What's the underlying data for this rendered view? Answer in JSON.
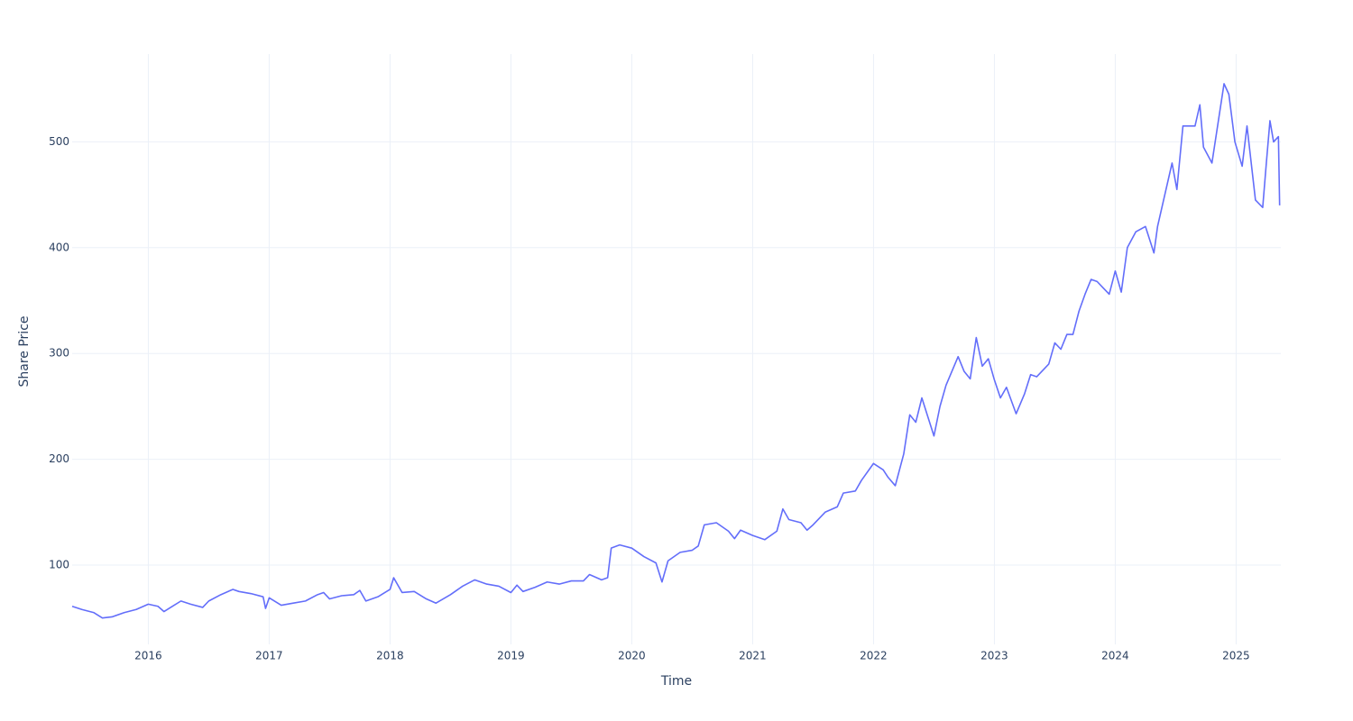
{
  "chart_data": {
    "type": "line",
    "x_label": "Time",
    "y_label": "Share Price",
    "xlim": [
      2015.37,
      2025.37
    ],
    "ylim": [
      25,
      583
    ],
    "xticks": [
      2016,
      2017,
      2018,
      2019,
      2020,
      2021,
      2022,
      2023,
      2024,
      2025
    ],
    "yticks": [
      100,
      200,
      300,
      400,
      500
    ],
    "grid": true,
    "x": [
      2015.37,
      2015.45,
      2015.55,
      2015.62,
      2015.7,
      2015.8,
      2015.9,
      2016.0,
      2016.08,
      2016.13,
      2016.2,
      2016.27,
      2016.35,
      2016.45,
      2016.5,
      2016.6,
      2016.7,
      2016.75,
      2016.85,
      2016.95,
      2016.97,
      2017.0,
      2017.1,
      2017.2,
      2017.3,
      2017.4,
      2017.45,
      2017.5,
      2017.6,
      2017.7,
      2017.75,
      2017.8,
      2017.9,
      2018.0,
      2018.03,
      2018.1,
      2018.2,
      2018.3,
      2018.38,
      2018.5,
      2018.6,
      2018.7,
      2018.8,
      2018.9,
      2019.0,
      2019.05,
      2019.1,
      2019.2,
      2019.3,
      2019.4,
      2019.5,
      2019.6,
      2019.65,
      2019.75,
      2019.8,
      2019.83,
      2019.9,
      2020.0,
      2020.1,
      2020.2,
      2020.25,
      2020.3,
      2020.4,
      2020.5,
      2020.55,
      2020.6,
      2020.7,
      2020.8,
      2020.85,
      2020.9,
      2021.0,
      2021.1,
      2021.2,
      2021.25,
      2021.3,
      2021.4,
      2021.45,
      2021.5,
      2021.6,
      2021.7,
      2021.75,
      2021.85,
      2021.9,
      2022.0,
      2022.08,
      2022.12,
      2022.18,
      2022.25,
      2022.3,
      2022.35,
      2022.4,
      2022.45,
      2022.5,
      2022.55,
      2022.6,
      2022.7,
      2022.75,
      2022.8,
      2022.85,
      2022.9,
      2022.95,
      2023.0,
      2023.05,
      2023.1,
      2023.18,
      2023.25,
      2023.3,
      2023.35,
      2023.45,
      2023.5,
      2023.55,
      2023.6,
      2023.65,
      2023.7,
      2023.75,
      2023.8,
      2023.85,
      2023.9,
      2023.95,
      2024.0,
      2024.05,
      2024.1,
      2024.17,
      2024.25,
      2024.32,
      2024.35,
      2024.4,
      2024.47,
      2024.51,
      2024.56,
      2024.66,
      2024.7,
      2024.73,
      2024.8,
      2024.88,
      2024.9,
      2024.94,
      2024.99,
      2025.05,
      2025.09,
      2025.16,
      2025.22,
      2025.25,
      2025.28,
      2025.31,
      2025.35,
      2025.36
    ],
    "series": [
      {
        "name": "Share Price",
        "color": "#636efa",
        "values": [
          61,
          58,
          55,
          50,
          51,
          55,
          58,
          63,
          61,
          56,
          61,
          66,
          63,
          60,
          66,
          72,
          77,
          75,
          73,
          70,
          59,
          69,
          62,
          64,
          66,
          72,
          74,
          68,
          71,
          72,
          76,
          66,
          70,
          77,
          88,
          74,
          75,
          68,
          64,
          72,
          80,
          86,
          82,
          80,
          74,
          81,
          75,
          79,
          84,
          82,
          85,
          85,
          91,
          86,
          88,
          116,
          119,
          116,
          108,
          102,
          84,
          104,
          112,
          114,
          118,
          138,
          140,
          132,
          125,
          133,
          128,
          124,
          132,
          153,
          143,
          140,
          133,
          138,
          150,
          155,
          168,
          170,
          180,
          196,
          190,
          183,
          175,
          205,
          242,
          235,
          258,
          240,
          222,
          250,
          270,
          297,
          283,
          276,
          315,
          288,
          295,
          275,
          258,
          268,
          243,
          262,
          280,
          278,
          290,
          310,
          304,
          318,
          318,
          340,
          356,
          370,
          368,
          362,
          356,
          378,
          358,
          400,
          415,
          420,
          395,
          420,
          445,
          480,
          455,
          515,
          515,
          535,
          495,
          480,
          540,
          555,
          545,
          500,
          477,
          515,
          445,
          438,
          480,
          520,
          500,
          505,
          440
        ]
      }
    ]
  }
}
